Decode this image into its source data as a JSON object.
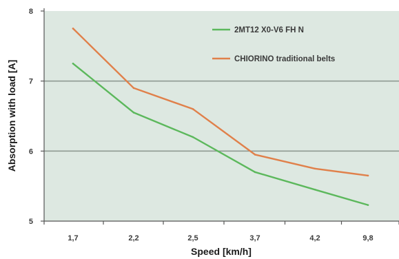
{
  "chart_data": {
    "type": "line",
    "title": "",
    "xlabel": "Speed [km/h]",
    "ylabel": "Absorption with load [A]",
    "categories": [
      "1,7",
      "2,2",
      "2,5",
      "3,7",
      "4,2",
      "9,8"
    ],
    "ylim": [
      5,
      8
    ],
    "yticks": [
      "5",
      "6",
      "7",
      "8"
    ],
    "grid": "horizontal",
    "legend_position": "top-right",
    "series": [
      {
        "name": "2MT12 X0-V6 FH N",
        "color": "#5cb85c",
        "values": [
          7.25,
          6.55,
          6.2,
          5.7,
          5.45,
          5.23
        ]
      },
      {
        "name": "CHIORINO traditional belts",
        "color": "#e0804a",
        "values": [
          7.75,
          6.9,
          6.6,
          5.95,
          5.75,
          5.65
        ]
      }
    ],
    "plot_background": "#dde8e1",
    "gridline_color": "#8f9a92"
  }
}
